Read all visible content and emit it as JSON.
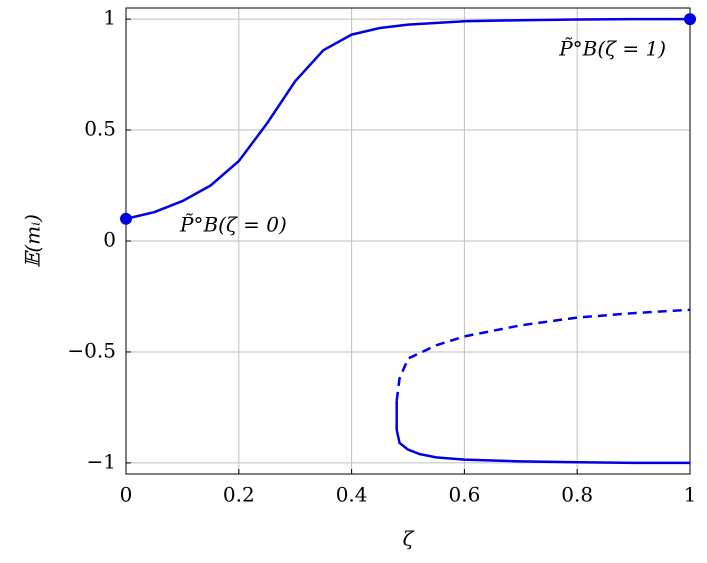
{
  "chart_data": {
    "type": "line",
    "xlabel": "ζ",
    "ylabel": "𝔼(mᵢ)",
    "xlim": [
      0,
      1
    ],
    "ylim": [
      -1.05,
      1.05
    ],
    "xticks": [
      0,
      0.2,
      0.4,
      0.6,
      0.8,
      1
    ],
    "yticks": [
      {
        "value": -1,
        "label": "−1"
      },
      {
        "value": -0.5,
        "label": "−0.5"
      },
      0,
      0.5,
      1
    ],
    "grid": true,
    "series": [
      {
        "color": "#0000e6",
        "style": "solid",
        "x": [
          0,
          0.05,
          0.1,
          0.15,
          0.2,
          0.25,
          0.3,
          0.35,
          0.4,
          0.45,
          0.5,
          0.6,
          0.7,
          0.8,
          0.9,
          1
        ],
        "values": [
          0.1,
          0.13,
          0.18,
          0.25,
          0.36,
          0.53,
          0.72,
          0.86,
          0.93,
          0.96,
          0.975,
          0.99,
          0.995,
          0.998,
          1,
          1
        ]
      },
      {
        "color": "#0000e6",
        "style": "solid",
        "x": [
          0.48,
          0.48,
          0.485,
          0.5,
          0.52,
          0.55,
          0.6,
          0.7,
          0.8,
          0.9,
          1
        ],
        "values": [
          -0.72,
          -0.85,
          -0.91,
          -0.94,
          -0.96,
          -0.975,
          -0.985,
          -0.993,
          -0.997,
          -1,
          -1
        ]
      },
      {
        "color": "#0000e6",
        "style": "dashed",
        "x": [
          0.48,
          0.485,
          0.495,
          0.5,
          0.55,
          0.6,
          0.7,
          0.8,
          0.9,
          1
        ],
        "values": [
          -0.72,
          -0.62,
          -0.56,
          -0.53,
          -0.47,
          -0.43,
          -0.38,
          -0.345,
          -0.325,
          -0.31
        ]
      },
      {
        "color": "#0000e6",
        "style": "marker",
        "x": [
          0,
          1
        ],
        "values": [
          0.1,
          1
        ]
      }
    ],
    "annotations": [
      "P̃°B(ζ = 0)",
      "P̃°B(ζ = 1)"
    ]
  }
}
